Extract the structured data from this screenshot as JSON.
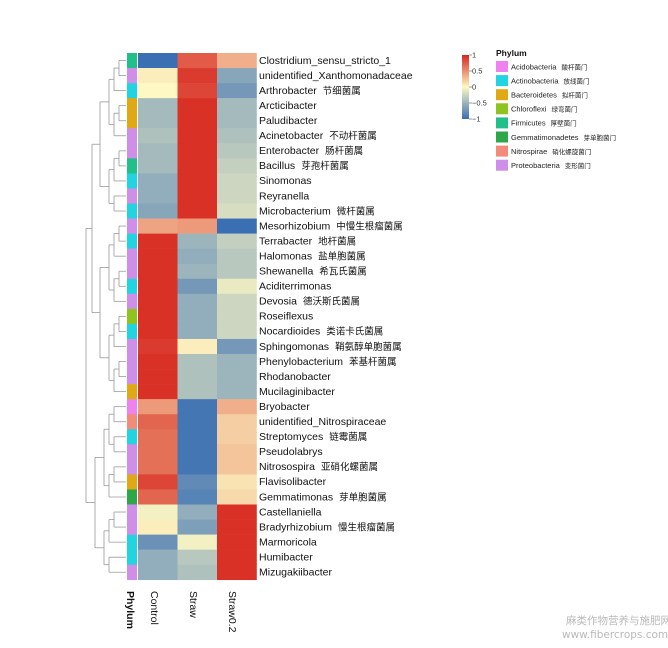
{
  "chart_data": {
    "type": "heatmap",
    "columns": [
      "Control",
      "Straw",
      "Straw0.2"
    ],
    "annotation_column_label": "Phylum",
    "color_scale": {
      "ticks": [
        "1",
        "0.5",
        "0",
        "−0.5",
        "−1"
      ],
      "tick_values": [
        1,
        0.5,
        0,
        -0.5,
        -1
      ],
      "low_color": "#3a6fb3",
      "mid_color": "#fdf8c4",
      "high_color": "#d7261e"
    },
    "legend": {
      "title": "Phylum",
      "items": [
        {
          "name": "Acidobacteria",
          "cn": "酸杆菌门",
          "color": "#ee82ee"
        },
        {
          "name": "Actinobacteria",
          "cn": "放线菌门",
          "color": "#22d3e0"
        },
        {
          "name": "Bacteroidetes",
          "cn": "拟杆菌门",
          "color": "#e0a814"
        },
        {
          "name": "Chloroflexi",
          "cn": "绿弯菌门",
          "color": "#8fc31f"
        },
        {
          "name": "Firmicutes",
          "cn": "厚壁菌门",
          "color": "#21c08b"
        },
        {
          "name": "Gemmatimonadetes",
          "cn": "芽单胞菌门",
          "color": "#2da74a"
        },
        {
          "name": "Nitrospirae",
          "cn": "硝化螺旋菌门",
          "color": "#f28b7a"
        },
        {
          "name": "Proteobacteria",
          "cn": "变形菌门",
          "color": "#cf8fe8"
        }
      ]
    },
    "rows": [
      {
        "name": "Clostridium_sensu_stricto_1",
        "cn": "",
        "phylum": "Firmicutes",
        "values": [
          -1.0,
          0.75,
          0.35
        ]
      },
      {
        "name": "unidentified_Xanthomonadaceae",
        "cn": "",
        "phylum": "Proteobacteria",
        "values": [
          0.05,
          0.9,
          -0.6
        ]
      },
      {
        "name": "Arthrobacter",
        "cn": "节细菌属",
        "phylum": "Actinobacteria",
        "values": [
          0.0,
          0.85,
          -0.7
        ]
      },
      {
        "name": "Arcticibacter",
        "cn": "",
        "phylum": "Bacteroidetes",
        "values": [
          -0.45,
          0.95,
          -0.45
        ]
      },
      {
        "name": "Paludibacter",
        "cn": "",
        "phylum": "Bacteroidetes",
        "values": [
          -0.45,
          0.95,
          -0.45
        ]
      },
      {
        "name": "Acinetobacter",
        "cn": "不动杆菌属",
        "phylum": "Proteobacteria",
        "values": [
          -0.4,
          0.95,
          -0.4
        ]
      },
      {
        "name": "Enterobacter",
        "cn": "肠杆菌属",
        "phylum": "Proteobacteria",
        "values": [
          -0.45,
          0.95,
          -0.35
        ]
      },
      {
        "name": "Bacillus",
        "cn": "芽孢杆菌属",
        "phylum": "Firmicutes",
        "values": [
          -0.45,
          0.95,
          -0.3
        ]
      },
      {
        "name": "Sinomonas",
        "cn": "",
        "phylum": "Actinobacteria",
        "values": [
          -0.55,
          0.95,
          -0.25
        ]
      },
      {
        "name": "Reyranella",
        "cn": "",
        "phylum": "Proteobacteria",
        "values": [
          -0.55,
          0.95,
          -0.25
        ]
      },
      {
        "name": "Microbacterium",
        "cn": "微杆菌属",
        "phylum": "Actinobacteria",
        "values": [
          -0.6,
          0.95,
          -0.2
        ]
      },
      {
        "name": "Mesorhizobium",
        "cn": "中慢生根瘤菌属",
        "phylum": "Proteobacteria",
        "values": [
          0.4,
          0.45,
          -1.0
        ]
      },
      {
        "name": "Terrabacter",
        "cn": "地杆菌属",
        "phylum": "Actinobacteria",
        "values": [
          0.95,
          -0.5,
          -0.3
        ]
      },
      {
        "name": "Halomonas",
        "cn": "盐单胞菌属",
        "phylum": "Proteobacteria",
        "values": [
          0.95,
          -0.55,
          -0.35
        ]
      },
      {
        "name": "Shewanella",
        "cn": "希瓦氏菌属",
        "phylum": "Proteobacteria",
        "values": [
          0.95,
          -0.5,
          -0.35
        ]
      },
      {
        "name": "Aciditerrimonas",
        "cn": "",
        "phylum": "Actinobacteria",
        "values": [
          0.95,
          -0.7,
          -0.1
        ]
      },
      {
        "name": "Devosia",
        "cn": "德沃斯氏菌属",
        "phylum": "Proteobacteria",
        "values": [
          0.95,
          -0.55,
          -0.25
        ]
      },
      {
        "name": "Roseiflexus",
        "cn": "",
        "phylum": "Chloroflexi",
        "values": [
          0.95,
          -0.55,
          -0.25
        ]
      },
      {
        "name": "Nocardioides",
        "cn": "类诺卡氏菌属",
        "phylum": "Actinobacteria",
        "values": [
          0.95,
          -0.55,
          -0.25
        ]
      },
      {
        "name": "Sphingomonas",
        "cn": "鞘氨醇单胞菌属",
        "phylum": "Proteobacteria",
        "values": [
          0.9,
          0.05,
          -0.7
        ]
      },
      {
        "name": "Phenylobacterium",
        "cn": "苯基杆菌属",
        "phylum": "Proteobacteria",
        "values": [
          0.95,
          -0.4,
          -0.5
        ]
      },
      {
        "name": "Rhodanobacter",
        "cn": "",
        "phylum": "Proteobacteria",
        "values": [
          0.95,
          -0.4,
          -0.5
        ]
      },
      {
        "name": "Mucilaginibacter",
        "cn": "",
        "phylum": "Bacteroidetes",
        "values": [
          0.95,
          -0.4,
          -0.5
        ]
      },
      {
        "name": "Bryobacter",
        "cn": "",
        "phylum": "Acidobacteria",
        "values": [
          0.45,
          -0.95,
          0.35
        ]
      },
      {
        "name": "unidentified_Nitrospiraceae",
        "cn": "",
        "phylum": "Nitrospirae",
        "values": [
          0.7,
          -0.95,
          0.2
        ]
      },
      {
        "name": "Streptomyces",
        "cn": "链霉菌属",
        "phylum": "Actinobacteria",
        "values": [
          0.65,
          -0.95,
          0.2
        ]
      },
      {
        "name": "Pseudolabrys",
        "cn": "",
        "phylum": "Proteobacteria",
        "values": [
          0.65,
          -0.95,
          0.25
        ]
      },
      {
        "name": "Nitrosospira",
        "cn": "亚硝化螺菌属",
        "phylum": "Proteobacteria",
        "values": [
          0.65,
          -0.95,
          0.25
        ]
      },
      {
        "name": "Flavisolibacter",
        "cn": "",
        "phylum": "Bacteroidetes",
        "values": [
          0.85,
          -0.8,
          0.1
        ]
      },
      {
        "name": "Gemmatimonas",
        "cn": "芽单胞菌属",
        "phylum": "Gemmatimonadetes",
        "values": [
          0.7,
          -0.85,
          0.15
        ]
      },
      {
        "name": "Castellaniella",
        "cn": "",
        "phylum": "Proteobacteria",
        "values": [
          -0.05,
          -0.55,
          0.95
        ]
      },
      {
        "name": "Bradyrhizobium",
        "cn": "慢生根瘤菌属",
        "phylum": "Proteobacteria",
        "values": [
          0.05,
          -0.65,
          0.95
        ]
      },
      {
        "name": "Marmoricola",
        "cn": "",
        "phylum": "Actinobacteria",
        "values": [
          -0.75,
          -0.05,
          0.95
        ]
      },
      {
        "name": "Humibacter",
        "cn": "",
        "phylum": "Actinobacteria",
        "values": [
          -0.55,
          -0.35,
          0.95
        ]
      },
      {
        "name": "Mizugakiibacter",
        "cn": "",
        "phylum": "Proteobacteria",
        "values": [
          -0.55,
          -0.4,
          0.95
        ]
      }
    ]
  },
  "watermark": {
    "line1": "麻类作物营养与施肥网",
    "line2": "www.fibercrops.com"
  }
}
